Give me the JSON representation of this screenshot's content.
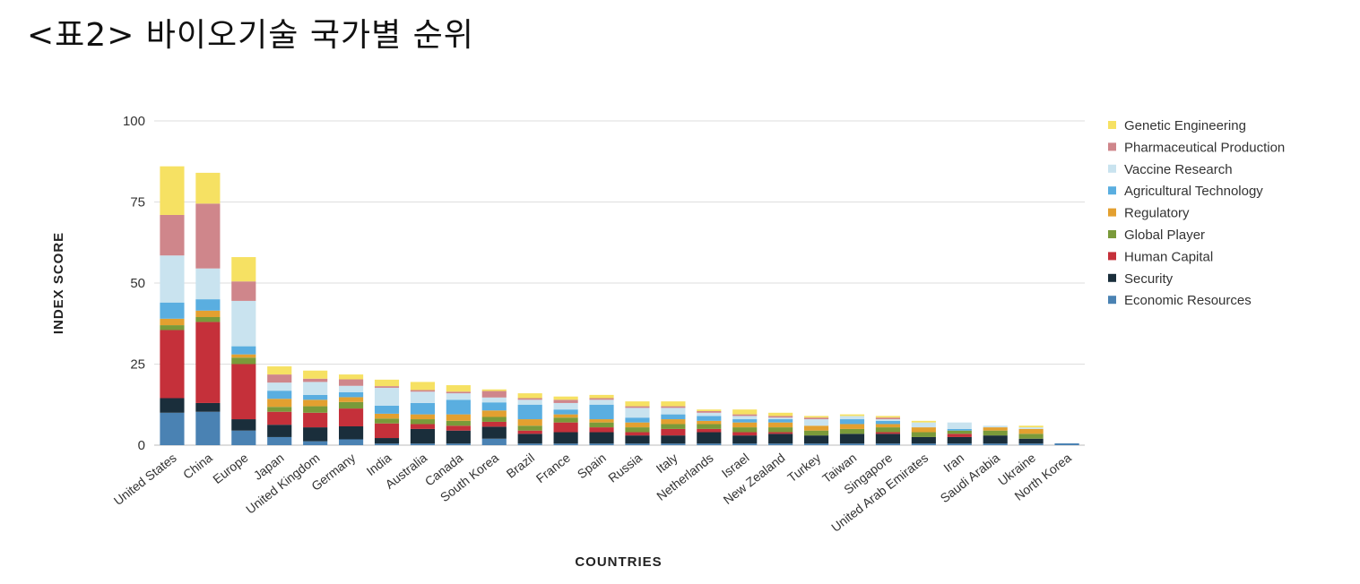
{
  "page": {
    "title": "<표2> 바이오기술 국가별 순위"
  },
  "chart_data": {
    "type": "bar",
    "stacked": true,
    "xlabel": "COUNTRIES",
    "ylabel": "INDEX SCORE",
    "ylim": [
      0,
      100
    ],
    "yticks": [
      0,
      25,
      50,
      75,
      100
    ],
    "grid": true,
    "legend_position": "right",
    "categories": [
      "United States",
      "China",
      "Europe",
      "Japan",
      "United Kingdom",
      "Germany",
      "India",
      "Australia",
      "Canada",
      "South Korea",
      "Brazil",
      "France",
      "Spain",
      "Russia",
      "Italy",
      "Netherlands",
      "Israel",
      "New Zealand",
      "Turkey",
      "Taiwan",
      "Singapore",
      "United Arab Emirates",
      "Iran",
      "Saudi Arabia",
      "Ukraine",
      "North Korea"
    ],
    "series": [
      {
        "name": "Economic Resources",
        "color": "#4a82b3",
        "values": [
          10,
          10.3,
          4.5,
          2.5,
          1.2,
          1.8,
          0.5,
          0.5,
          0.5,
          2,
          0.5,
          0.5,
          0.5,
          0.5,
          0.5,
          0.5,
          0.5,
          0.5,
          0.5,
          0.5,
          0.5,
          0.5,
          0.5,
          0.5,
          0.5,
          0.5
        ]
      },
      {
        "name": "Security",
        "color": "#1a2e3b",
        "values": [
          4.5,
          2.7,
          3.5,
          3.8,
          4.3,
          4,
          1.7,
          4.5,
          4,
          3.7,
          3,
          3.5,
          3.5,
          2.5,
          2.5,
          3.5,
          2.5,
          3,
          2.5,
          3,
          3,
          2,
          2,
          2.5,
          1.5,
          0
        ]
      },
      {
        "name": "Human Capital",
        "color": "#c5303a",
        "values": [
          21,
          25,
          17,
          4,
          4.5,
          5.5,
          4.5,
          1.5,
          1.5,
          1.5,
          1,
          3,
          1.5,
          1,
          2,
          1,
          1,
          0.5,
          0,
          0,
          0.5,
          0,
          1,
          0,
          0,
          0
        ]
      },
      {
        "name": "Global Player",
        "color": "#7a9a3a",
        "values": [
          1.5,
          1.5,
          2,
          1.5,
          2,
          2,
          1.5,
          1.5,
          1.5,
          1.5,
          1.5,
          1.5,
          1.5,
          1.5,
          1.5,
          1.5,
          1.5,
          1.5,
          1.5,
          1.5,
          1.5,
          1.5,
          1,
          1.5,
          1.5,
          0
        ]
      },
      {
        "name": "Regulatory",
        "color": "#e3a030",
        "values": [
          2,
          2,
          1,
          2.5,
          2,
          1.5,
          1.5,
          1.5,
          2,
          2,
          2,
          1,
          1,
          1.5,
          1.5,
          1,
          1.5,
          1.5,
          1.5,
          1.5,
          1,
          1.5,
          0,
          1,
          1.5,
          0
        ]
      },
      {
        "name": "Agricultural Technology",
        "color": "#5aaee0",
        "values": [
          5,
          3.5,
          2.5,
          2.5,
          1.5,
          1.5,
          2.5,
          3.5,
          4.5,
          2.5,
          4.5,
          1.5,
          4.5,
          1.5,
          1.5,
          1.5,
          1,
          1,
          0,
          1.5,
          1,
          0,
          0.5,
          0,
          0,
          0
        ]
      },
      {
        "name": "Vaccine Research",
        "color": "#c9e3ef",
        "values": [
          14.5,
          9.5,
          14,
          2.5,
          4,
          2,
          5.5,
          3.5,
          2,
          1.5,
          1.5,
          2,
          1.5,
          3,
          2,
          1,
          1,
          0.5,
          2,
          1,
          0.5,
          1.5,
          2,
          0.5,
          0.5,
          0
        ]
      },
      {
        "name": "Pharmaceutical Production",
        "color": "#cf868b",
        "values": [
          12.5,
          20,
          6,
          2.5,
          1,
          2,
          0.5,
          0.5,
          0.5,
          2,
          0.5,
          1,
          0.5,
          0.5,
          0.5,
          0.5,
          0.5,
          0.5,
          0.5,
          0,
          0.5,
          0,
          0,
          0,
          0,
          0
        ]
      },
      {
        "name": "Genetic Engineering",
        "color": "#f6e163",
        "values": [
          15,
          9.5,
          7.5,
          2.5,
          2.5,
          1.5,
          2,
          2.5,
          2,
          0.5,
          1.5,
          1,
          1,
          1.5,
          1.5,
          0.5,
          1.5,
          1,
          0.5,
          0.5,
          0.5,
          0.5,
          0,
          0,
          0.5,
          0
        ]
      }
    ]
  }
}
